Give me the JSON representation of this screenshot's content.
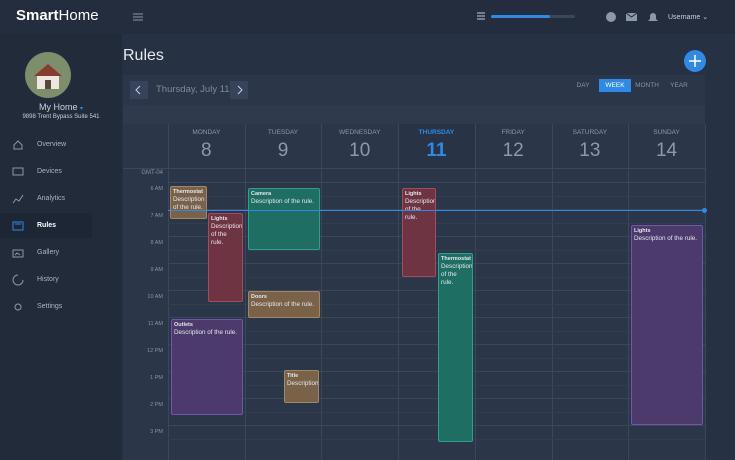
{
  "header": {
    "logo_bold": "Smart",
    "logo_light": "Home",
    "username": "Username"
  },
  "sidebar": {
    "home_name": "My Home",
    "address": "9898 Trent Bypass Suite 541",
    "nav": [
      "Overview",
      "Devices",
      "Analytics",
      "Rules",
      "Gallery",
      "History",
      "Settings"
    ]
  },
  "page": {
    "title": "Rules"
  },
  "calendar": {
    "date_label": "Thursday, July 11",
    "views": [
      "DAY",
      "WEEK",
      "MONTH",
      "YEAR"
    ],
    "days": [
      {
        "name": "MONDAY",
        "date": "8"
      },
      {
        "name": "TUESDAY",
        "date": "9"
      },
      {
        "name": "WEDNESDAY",
        "date": "10"
      },
      {
        "name": "THURSDAY",
        "date": "11"
      },
      {
        "name": "FRIDAY",
        "date": "12"
      },
      {
        "name": "SATURDAY",
        "date": "13"
      },
      {
        "name": "SUNDAY",
        "date": "14"
      }
    ],
    "timezone": "GMT-04",
    "times": [
      "6 AM",
      "7 AM",
      "8 AM",
      "9 AM",
      "10 AM",
      "11 AM",
      "12 PM",
      "1 PM",
      "2 PM",
      "3 PM"
    ],
    "events": [
      {
        "title": "Thermostat",
        "description": "Description of the rule."
      },
      {
        "title": "Lights",
        "description": "Description of the rule."
      },
      {
        "title": "Camera",
        "description": "Description of the rule."
      },
      {
        "title": "Doors",
        "description": "Description of the rule."
      },
      {
        "title": "Title",
        "description": "Description"
      },
      {
        "title": "Outlets",
        "description": "Description of the rule."
      },
      {
        "title": "Lights",
        "description": "Description of the rule."
      },
      {
        "title": "Thermostat",
        "description": "Description of the rule."
      },
      {
        "title": "Lights",
        "description": "Description of the rule."
      }
    ]
  }
}
